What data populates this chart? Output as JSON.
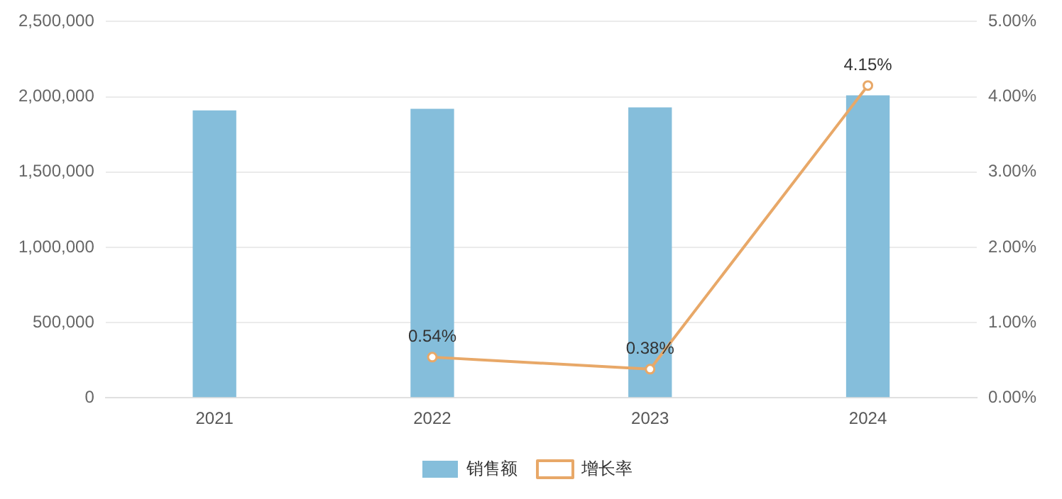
{
  "chart_data": {
    "type": "bar",
    "categories": [
      "2021",
      "2022",
      "2023",
      "2024"
    ],
    "series": [
      {
        "name": "销售额",
        "color": "#85bedb",
        "values": [
          1910000,
          1920000,
          1930000,
          2010000
        ]
      },
      {
        "name": "增长率",
        "type": "line",
        "axis": "y2",
        "color": "#e8a868",
        "values": [
          null,
          0.54,
          0.38,
          4.15
        ],
        "value_labels": [
          null,
          "0.54%",
          "0.38%",
          "4.15%"
        ]
      }
    ],
    "ylim": [
      0,
      2500000
    ],
    "yticks": [
      {
        "value": 0,
        "label": "0"
      },
      {
        "value": 500000,
        "label": "500,000"
      },
      {
        "value": 1000000,
        "label": "1,000,000"
      },
      {
        "value": 1500000,
        "label": "1,500,000"
      },
      {
        "value": 2000000,
        "label": "2,000,000"
      },
      {
        "value": 2500000,
        "label": "2,500,000"
      }
    ],
    "y2lim": [
      0,
      5
    ],
    "y2ticks": [
      {
        "value": 0,
        "label": "0.00%"
      },
      {
        "value": 1,
        "label": "1.00%"
      },
      {
        "value": 2,
        "label": "2.00%"
      },
      {
        "value": 3,
        "label": "3.00%"
      },
      {
        "value": 4,
        "label": "4.00%"
      },
      {
        "value": 5,
        "label": "5.00%"
      }
    ],
    "grid": "y",
    "legend": "bottom",
    "marker": "circle",
    "line_style": "solid"
  }
}
